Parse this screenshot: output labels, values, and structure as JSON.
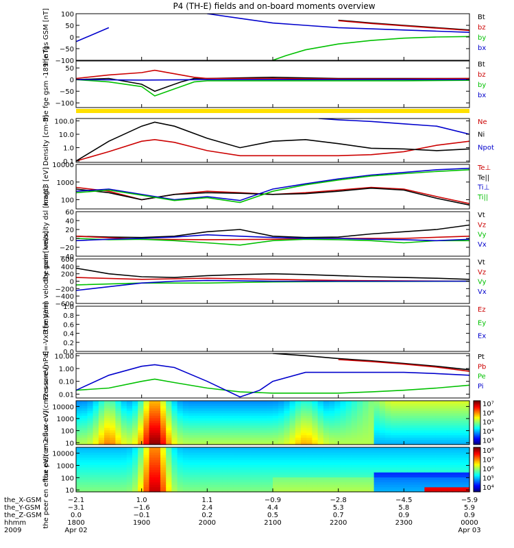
{
  "title": "P4 (TH-E) fields and on-board moments overview",
  "chart_data": [
    {
      "type": "line",
      "panel": "fgs_gsm",
      "ylabel": "the fgs GSM [nT]",
      "ylim": [
        -100,
        100
      ],
      "ticks": [
        "100",
        "50",
        "0",
        "−50",
        "−100"
      ],
      "tick_values": [
        100,
        50,
        0,
        -50,
        -100
      ],
      "series": [
        {
          "name": "Bt",
          "color": "#000000",
          "x": [
            18.0,
            18.5,
            19.0,
            19.5,
            20.0,
            20.5,
            21.0,
            21.5,
            22.0,
            22.5,
            23.0,
            23.5,
            24.0
          ],
          "y": [
            null,
            null,
            null,
            null,
            null,
            null,
            null,
            null,
            72,
            60,
            50,
            40,
            30
          ]
        },
        {
          "name": "bz",
          "color": "#cc0000",
          "x": [
            22.0,
            22.5,
            23.0,
            23.5,
            24.0
          ],
          "y": [
            70,
            58,
            48,
            38,
            28
          ]
        },
        {
          "name": "by",
          "color": "#00c000",
          "x": [
            21.0,
            21.2,
            21.5,
            22.0,
            22.5,
            23.0,
            23.5,
            24.0
          ],
          "y": [
            -100,
            -80,
            -55,
            -30,
            -15,
            -5,
            0,
            2
          ]
        },
        {
          "name": "bx",
          "color": "#0000cc",
          "x": [
            18.0,
            18.5,
            19.0,
            19.5,
            20.0,
            20.5,
            21.0,
            21.5,
            22.0,
            22.5,
            23.0,
            23.5,
            24.0
          ],
          "y": [
            -20,
            40,
            null,
            null,
            100,
            80,
            60,
            50,
            40,
            35,
            30,
            25,
            20
          ]
        }
      ]
    },
    {
      "type": "line",
      "panel": "fge_gsm",
      "ylabel": "the fge gsm -189 [nT]",
      "ylim": [
        -120,
        80
      ],
      "ticks": [
        "50",
        "0",
        "−50",
        "−100"
      ],
      "tick_values": [
        50,
        0,
        -50,
        -100
      ],
      "series": [
        {
          "name": "Bt",
          "color": "#000000",
          "x": [
            18.0,
            18.5,
            19.0,
            19.2,
            19.4,
            19.6,
            19.8,
            20.0,
            21.0,
            22.0,
            23.0,
            24.0
          ],
          "y": [
            0,
            5,
            -20,
            -50,
            -30,
            -10,
            5,
            5,
            10,
            5,
            5,
            5
          ]
        },
        {
          "name": "bz",
          "color": "#cc0000",
          "x": [
            18.0,
            18.5,
            19.0,
            19.2,
            19.5,
            19.8,
            20.0,
            21.0,
            22.0,
            23.0,
            24.0
          ],
          "y": [
            5,
            20,
            30,
            40,
            25,
            10,
            5,
            5,
            3,
            3,
            5
          ]
        },
        {
          "name": "by",
          "color": "#00c000",
          "x": [
            18.0,
            18.5,
            19.0,
            19.2,
            19.5,
            19.8,
            20.0,
            21.0,
            22.0,
            23.0,
            24.0
          ],
          "y": [
            0,
            -10,
            -30,
            -70,
            -40,
            -10,
            -5,
            -5,
            -5,
            -5,
            -3
          ]
        },
        {
          "name": "bx",
          "color": "#0000cc",
          "x": [
            18.0,
            19.0,
            20.0,
            21.0,
            22.0,
            23.0,
            24.0
          ],
          "y": [
            0,
            -2,
            0,
            0,
            0,
            0,
            0
          ]
        }
      ]
    },
    {
      "type": "line",
      "panel": "density",
      "ylabel": "Density [cm-3]",
      "yscale": "log",
      "ylim": [
        0.08,
        150
      ],
      "ticks": [
        "100.0",
        "10.0",
        "1.0",
        "0.1"
      ],
      "tick_values": [
        100,
        10,
        1,
        0.1
      ],
      "series": [
        {
          "name": "Ne",
          "color": "#cc0000",
          "x": [
            18.0,
            18.5,
            19.0,
            19.2,
            19.5,
            20.0,
            20.5,
            21.0,
            21.5,
            22.0,
            22.5,
            23.0,
            23.5,
            24.0
          ],
          "y": [
            0.1,
            0.5,
            3.0,
            4.0,
            2.5,
            0.6,
            0.25,
            0.25,
            0.25,
            0.25,
            0.3,
            0.5,
            1.5,
            3.0
          ]
        },
        {
          "name": "Ni",
          "color": "#000000",
          "x": [
            18.0,
            18.5,
            19.0,
            19.2,
            19.5,
            20.0,
            20.5,
            21.0,
            21.5,
            22.0,
            22.5,
            23.0,
            23.5,
            24.0
          ],
          "y": [
            0.1,
            3.0,
            40,
            80,
            40,
            5,
            1.0,
            3.0,
            4.0,
            2.0,
            0.9,
            0.8,
            0.6,
            0.8
          ]
        },
        {
          "name": "Npot",
          "color": "#0000cc",
          "x": [
            21.7,
            22.0,
            22.5,
            23.0,
            23.5,
            24.0
          ],
          "y": [
            150,
            120,
            90,
            60,
            40,
            10
          ]
        }
      ]
    },
    {
      "type": "line",
      "panel": "temperature",
      "ylabel": "magt3 [eV]",
      "yscale": "log",
      "ylim": [
        30,
        10000
      ],
      "ticks": [
        "10000",
        "1000",
        "100"
      ],
      "tick_values": [
        10000,
        1000,
        100
      ],
      "series": [
        {
          "name": "Te⊥",
          "color": "#cc0000",
          "x": [
            18.0,
            18.5,
            19.0,
            19.5,
            20.0,
            20.5,
            21.0,
            21.5,
            22.0,
            22.5,
            23.0,
            23.5,
            24.0
          ],
          "y": [
            500,
            300,
            100,
            200,
            300,
            250,
            200,
            250,
            350,
            500,
            400,
            150,
            60
          ]
        },
        {
          "name": "Te||",
          "color": "#000000",
          "x": [
            18.0,
            18.5,
            19.0,
            19.5,
            20.0,
            20.5,
            21.0,
            21.5,
            22.0,
            22.5,
            23.0,
            23.5,
            24.0
          ],
          "y": [
            400,
            250,
            100,
            200,
            250,
            230,
            200,
            220,
            300,
            450,
            350,
            120,
            50
          ]
        },
        {
          "name": "Ti⊥",
          "color": "#0000cc",
          "x": [
            18.0,
            18.5,
            19.0,
            19.5,
            20.0,
            20.5,
            21.0,
            21.5,
            22.0,
            22.5,
            23.0,
            23.5,
            24.0
          ],
          "y": [
            300,
            400,
            200,
            100,
            150,
            90,
            400,
            800,
            1500,
            2500,
            3500,
            5000,
            6000
          ]
        },
        {
          "name": "Ti||",
          "color": "#00c000",
          "x": [
            18.0,
            18.5,
            19.0,
            19.5,
            20.0,
            20.5,
            21.0,
            21.5,
            22.0,
            22.5,
            23.0,
            23.5,
            24.0
          ],
          "y": [
            250,
            350,
            180,
            90,
            130,
            70,
            300,
            700,
            1300,
            2200,
            3000,
            4000,
            5000
          ]
        }
      ]
    },
    {
      "type": "line",
      "panel": "peim_velocity_dsl",
      "ylabel": "the peim velocity dsl [km/s]",
      "ylim": [
        -40,
        60
      ],
      "ticks": [
        "60",
        "40",
        "20",
        "0",
        "−20",
        "−40"
      ],
      "tick_values": [
        60,
        40,
        20,
        0,
        -20,
        -40
      ],
      "series": [
        {
          "name": "Vt",
          "color": "#000000",
          "x": [
            18.0,
            18.5,
            19.0,
            19.5,
            20.0,
            20.5,
            21.0,
            21.5,
            22.0,
            22.5,
            23.0,
            23.5,
            24.0
          ],
          "y": [
            5,
            3,
            2,
            5,
            15,
            20,
            5,
            2,
            3,
            10,
            15,
            20,
            30
          ]
        },
        {
          "name": "Vz",
          "color": "#cc0000",
          "x": [
            18.0,
            19.0,
            20.0,
            21.0,
            22.0,
            23.0,
            24.0
          ],
          "y": [
            5,
            -2,
            -3,
            -2,
            0,
            0,
            5
          ]
        },
        {
          "name": "Vy",
          "color": "#00c000",
          "x": [
            18.0,
            18.5,
            19.0,
            19.5,
            20.0,
            20.5,
            21.0,
            21.5,
            22.0,
            22.5,
            23.0,
            23.5,
            24.0
          ],
          "y": [
            0,
            -3,
            -2,
            -5,
            -10,
            -15,
            -5,
            -2,
            -3,
            -5,
            -10,
            -5,
            -5
          ]
        },
        {
          "name": "Vx",
          "color": "#0000cc",
          "x": [
            18.0,
            18.5,
            19.0,
            19.5,
            20.0,
            20.5,
            21.0,
            21.5,
            22.0,
            22.5,
            23.0,
            23.5,
            24.0
          ],
          "y": [
            -5,
            -2,
            0,
            3,
            8,
            5,
            2,
            0,
            0,
            -2,
            -3,
            -5,
            -2
          ]
        }
      ]
    },
    {
      "type": "line",
      "panel": "peim_velocity_gsm",
      "ylabel": "the peim velocity gsm [km/s]",
      "ylim": [
        -600,
        600
      ],
      "ticks": [
        "600",
        "400",
        "200",
        "0",
        "−200",
        "−400",
        "−600"
      ],
      "tick_values": [
        600,
        400,
        200,
        0,
        -200,
        -400,
        -600
      ],
      "series": [
        {
          "name": "Vt",
          "color": "#000000",
          "x": [
            18.0,
            18.5,
            19.0,
            19.5,
            20.0,
            20.5,
            21.0,
            21.5,
            22.0,
            22.5,
            23.0,
            23.5,
            24.0
          ],
          "y": [
            350,
            200,
            120,
            100,
            150,
            180,
            200,
            180,
            150,
            120,
            100,
            80,
            50
          ]
        },
        {
          "name": "Vz",
          "color": "#cc0000",
          "x": [
            18.0,
            19.0,
            20.0,
            21.0,
            22.0,
            23.0,
            24.0
          ],
          "y": [
            100,
            50,
            80,
            50,
            20,
            10,
            0
          ]
        },
        {
          "name": "Vy",
          "color": "#00c000",
          "x": [
            18.0,
            19.0,
            20.0,
            21.0,
            22.0,
            23.0,
            24.0
          ],
          "y": [
            -100,
            -50,
            -50,
            -20,
            -10,
            -5,
            0
          ]
        },
        {
          "name": "Vx",
          "color": "#0000cc",
          "x": [
            18.0,
            18.5,
            19.0,
            19.5,
            20.0,
            21.0,
            22.0,
            23.0,
            24.0
          ],
          "y": [
            -250,
            -150,
            -50,
            0,
            20,
            0,
            0,
            0,
            0
          ]
        }
      ]
    },
    {
      "type": "line",
      "panel": "efield",
      "ylabel": "E=-VxB [mV/m]",
      "ylim": [
        0,
        1.0
      ],
      "ticks": [
        "1.0",
        "0.8",
        "0.6",
        "0.4",
        "0.2",
        "0.0"
      ],
      "tick_values": [
        1.0,
        0.8,
        0.6,
        0.4,
        0.2,
        0.0
      ],
      "series": [
        {
          "name": "Ez",
          "color": "#cc0000",
          "x": [],
          "y": []
        },
        {
          "name": "Ey",
          "color": "#00c000",
          "x": [],
          "y": []
        },
        {
          "name": "Ex",
          "color": "#0000cc",
          "x": [],
          "y": []
        }
      ]
    },
    {
      "type": "line",
      "panel": "pressure",
      "ylabel": "Pressure [nPa]",
      "yscale": "log",
      "ylim": [
        0.005,
        15
      ],
      "ticks": [
        "10.00",
        "1.00",
        "0.10",
        "0.01"
      ],
      "tick_values": [
        10,
        1,
        0.1,
        0.01
      ],
      "series": [
        {
          "name": "Pt",
          "color": "#000000",
          "x": [
            21.0,
            21.5,
            22.0,
            22.5,
            23.0,
            23.5,
            24.0
          ],
          "y": [
            15,
            10,
            6,
            4,
            2.5,
            1.5,
            0.8
          ]
        },
        {
          "name": "Pb",
          "color": "#cc0000",
          "x": [
            22.0,
            22.5,
            23.0,
            23.5,
            24.0
          ],
          "y": [
            5,
            3.5,
            2.2,
            1.3,
            0.6
          ]
        },
        {
          "name": "Pe",
          "color": "#00c000",
          "x": [
            18.0,
            18.5,
            19.0,
            19.2,
            19.5,
            20.0,
            20.5,
            21.0,
            21.5,
            22.0,
            22.5,
            23.0,
            23.5,
            24.0
          ],
          "y": [
            0.02,
            0.03,
            0.1,
            0.15,
            0.08,
            0.03,
            0.015,
            0.012,
            0.012,
            0.012,
            0.015,
            0.02,
            0.03,
            0.05
          ]
        },
        {
          "name": "Pi",
          "color": "#0000cc",
          "x": [
            18.0,
            18.5,
            19.0,
            19.2,
            19.5,
            20.0,
            20.5,
            20.8,
            21.0,
            21.5,
            22.0,
            22.5,
            23.0,
            23.5,
            24.0
          ],
          "y": [
            0.02,
            0.3,
            1.5,
            2.0,
            1.2,
            0.1,
            0.006,
            0.02,
            0.1,
            0.5,
            0.5,
            0.5,
            0.5,
            0.4,
            0.3
          ]
        }
      ]
    },
    {
      "type": "heatmap",
      "panel": "peir_en_eflux",
      "ylabel": "the peir en eflux eV/(cm2-s-sr-eV)",
      "yscale": "log",
      "ylim": [
        7,
        30000
      ],
      "ticks": [
        "10000",
        "1000",
        "100",
        "10"
      ],
      "tick_values": [
        10000,
        1000,
        100,
        10
      ],
      "colorbar_ticks": [
        "10⁷",
        "10⁶",
        "10⁵",
        "10⁴",
        "10³"
      ],
      "colorbar_range": [
        2.5,
        7.3
      ]
    },
    {
      "type": "heatmap",
      "panel": "peer_en_eflux",
      "ylabel": "the peer en eflux eV/(cm2-s-sr-eV)",
      "yscale": "log",
      "ylim": [
        7,
        30000
      ],
      "ticks": [
        "10000",
        "1000",
        "100",
        "10"
      ],
      "tick_values": [
        10000,
        1000,
        100,
        10
      ],
      "colorbar_ticks": [
        "10⁸",
        "10⁷",
        "10⁶",
        "10⁵",
        "10⁴"
      ],
      "colorbar_range": [
        3.5,
        8.3
      ]
    }
  ],
  "xaxis": {
    "xlim": [
      18.0,
      24.0
    ],
    "rows": [
      {
        "label": "the_X-GSM",
        "values": [
          "−2.1",
          "1.0",
          "1.1",
          "−0.9",
          "−2.8",
          "−4.5",
          "−5.9"
        ]
      },
      {
        "label": "the_Y-GSM",
        "values": [
          "−3.1",
          "−1.6",
          "2.4",
          "4.4",
          "5.3",
          "5.8",
          "5.9"
        ]
      },
      {
        "label": "the_Z-GSM",
        "values": [
          "0.0",
          "−0.1",
          "0.2",
          "0.5",
          "0.7",
          "0.9",
          "0.9"
        ]
      },
      {
        "label": "hhmm",
        "values": [
          "1800",
          "1900",
          "2000",
          "2100",
          "2200",
          "2300",
          "0000"
        ]
      },
      {
        "label": "2009",
        "values": [
          "Apr 02",
          "",
          "",
          "",
          "",
          "",
          "Apr 03"
        ]
      }
    ]
  },
  "legends": [
    [
      "Bt",
      "bz",
      "by",
      "bx"
    ],
    [
      "Bt",
      "bz",
      "by",
      "bx"
    ],
    [
      "Ne",
      "Ni",
      "Npot"
    ],
    [
      "Te⊥",
      "Te||",
      "Ti⊥",
      "Ti||"
    ],
    [
      "Vt",
      "Vz",
      "Vy",
      "Vx"
    ],
    [
      "Vt",
      "Vz",
      "Vy",
      "Vx"
    ],
    [
      "Ez",
      "Ey",
      "Ex"
    ],
    [
      "Pt",
      "Pb",
      "Pe",
      "Pi"
    ]
  ],
  "quality_bar_color": "#ffe000"
}
